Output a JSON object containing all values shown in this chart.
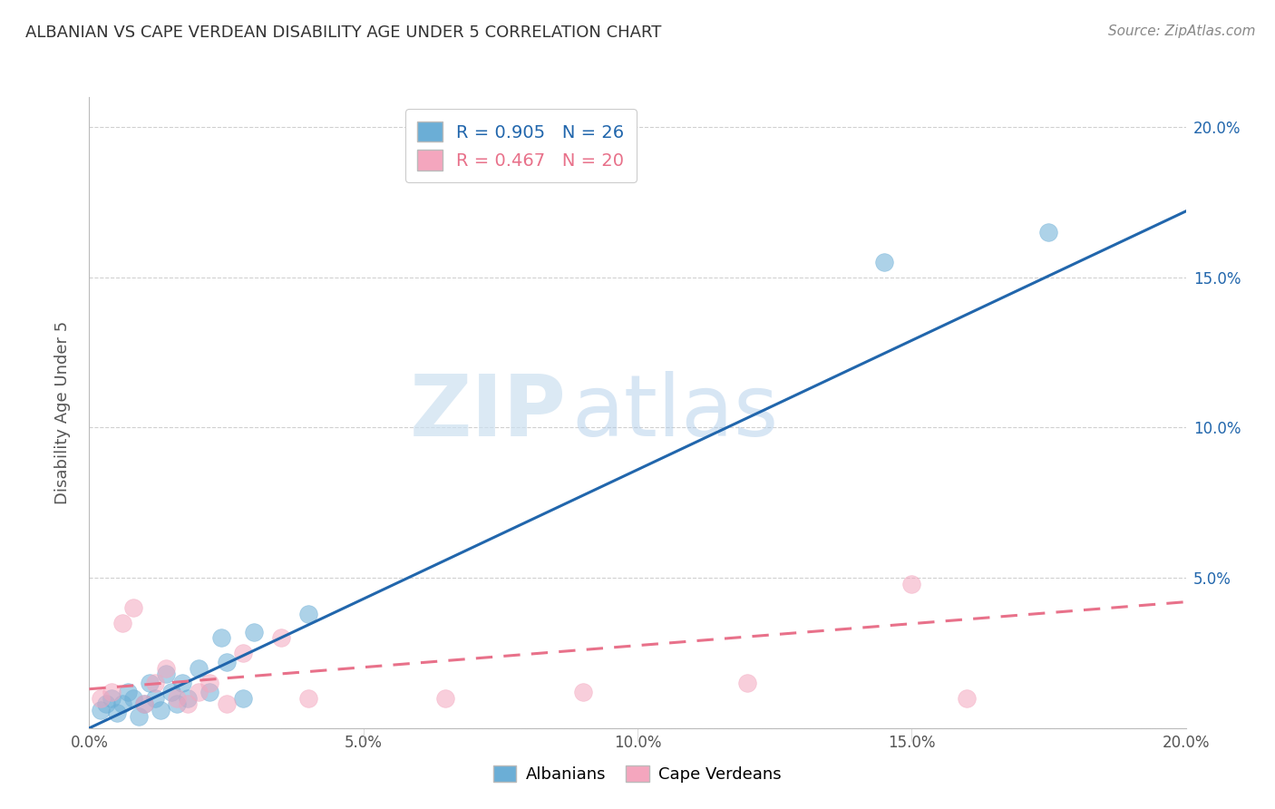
{
  "title": "ALBANIAN VS CAPE VERDEAN DISABILITY AGE UNDER 5 CORRELATION CHART",
  "source": "Source: ZipAtlas.com",
  "ylabel": "Disability Age Under 5",
  "xlim": [
    0.0,
    0.2
  ],
  "ylim": [
    0.0,
    0.21
  ],
  "xticks": [
    0.0,
    0.05,
    0.1,
    0.15,
    0.2
  ],
  "yticks": [
    0.0,
    0.05,
    0.1,
    0.15,
    0.2
  ],
  "xticklabels": [
    "0.0%",
    "5.0%",
    "10.0%",
    "15.0%",
    "20.0%"
  ],
  "yticklabels_left": [
    "",
    "",
    "",
    "",
    ""
  ],
  "yticklabels_right": [
    "",
    "5.0%",
    "10.0%",
    "15.0%",
    "20.0%"
  ],
  "albanian_color": "#6baed6",
  "capeverdean_color": "#f4a6be",
  "albanian_line_color": "#2166ac",
  "capeverdean_line_color": "#e8718a",
  "albanian_R": 0.905,
  "albanian_N": 26,
  "capeverdean_R": 0.467,
  "capeverdean_N": 20,
  "albanian_scatter_x": [
    0.002,
    0.003,
    0.004,
    0.005,
    0.006,
    0.007,
    0.008,
    0.009,
    0.01,
    0.011,
    0.012,
    0.013,
    0.014,
    0.015,
    0.016,
    0.017,
    0.018,
    0.02,
    0.022,
    0.024,
    0.025,
    0.028,
    0.03,
    0.04,
    0.145,
    0.175
  ],
  "albanian_scatter_y": [
    0.006,
    0.008,
    0.01,
    0.005,
    0.008,
    0.012,
    0.01,
    0.004,
    0.008,
    0.015,
    0.01,
    0.006,
    0.018,
    0.012,
    0.008,
    0.015,
    0.01,
    0.02,
    0.012,
    0.03,
    0.022,
    0.01,
    0.032,
    0.038,
    0.155,
    0.165
  ],
  "capeverdean_scatter_x": [
    0.002,
    0.004,
    0.006,
    0.008,
    0.01,
    0.012,
    0.014,
    0.016,
    0.018,
    0.02,
    0.022,
    0.025,
    0.028,
    0.035,
    0.04,
    0.065,
    0.09,
    0.12,
    0.15,
    0.16
  ],
  "capeverdean_scatter_y": [
    0.01,
    0.012,
    0.035,
    0.04,
    0.008,
    0.015,
    0.02,
    0.01,
    0.008,
    0.012,
    0.015,
    0.008,
    0.025,
    0.03,
    0.01,
    0.01,
    0.012,
    0.015,
    0.048,
    0.01
  ],
  "albanian_line_x": [
    0.0,
    0.2
  ],
  "albanian_line_y": [
    0.0,
    0.172
  ],
  "capeverdean_line_x": [
    0.0,
    0.2
  ],
  "capeverdean_line_y": [
    0.013,
    0.042
  ],
  "watermark_zip": "ZIP",
  "watermark_atlas": "atlas",
  "background_color": "#ffffff",
  "grid_color": "#d0d0d0"
}
